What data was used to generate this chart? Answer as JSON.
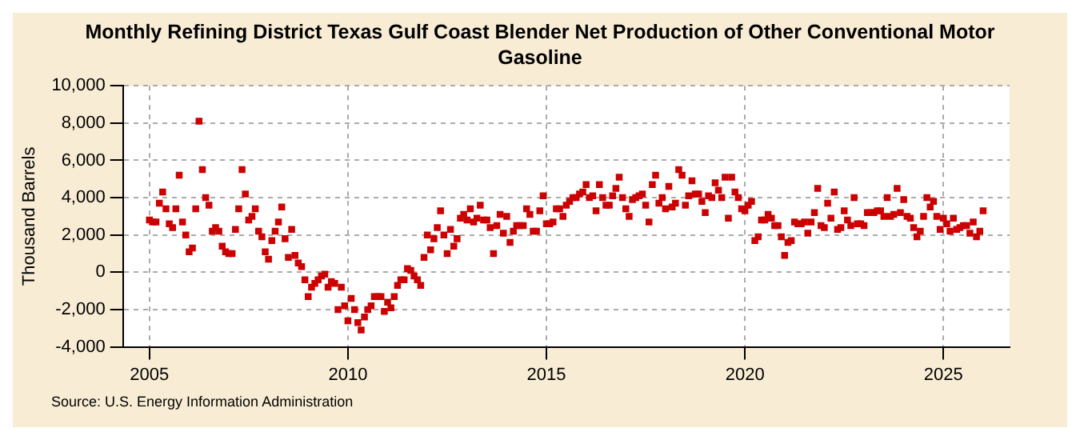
{
  "chart_data": {
    "type": "scatter",
    "title": "Monthly Refining District Texas Gulf Coast Blender Net Production of Other Conventional Motor Gasoline",
    "ylabel": "Thousand Barrels",
    "annotations": [
      "Source: U.S. Energy Information Administration"
    ],
    "xlim": [
      "2004-05",
      "2026-09"
    ],
    "xticks": [
      "2005",
      "2010",
      "2015",
      "2020",
      "2025"
    ],
    "ylim": [
      -4000,
      10000
    ],
    "yticks": [
      {
        "value": -4000,
        "label": "-4,000"
      },
      {
        "value": -2000,
        "label": "-2,000"
      },
      0,
      {
        "value": 2000,
        "label": "2,000"
      },
      {
        "value": 4000,
        "label": "4,000"
      },
      {
        "value": 6000,
        "label": "6,000"
      },
      {
        "value": 8000,
        "label": "8,000"
      },
      {
        "value": 10000,
        "label": "10,000"
      }
    ],
    "grid": true,
    "legend": false,
    "marker": "square",
    "x": [
      "2005-01",
      "2005-02",
      "2005-03",
      "2005-04",
      "2005-05",
      "2005-06",
      "2005-07",
      "2005-08",
      "2005-09",
      "2005-10",
      "2005-11",
      "2005-12",
      "2006-01",
      "2006-02",
      "2006-03",
      "2006-04",
      "2006-05",
      "2006-06",
      "2006-07",
      "2006-08",
      "2006-09",
      "2006-10",
      "2006-11",
      "2006-12",
      "2007-01",
      "2007-02",
      "2007-03",
      "2007-04",
      "2007-05",
      "2007-06",
      "2007-07",
      "2007-08",
      "2007-09",
      "2007-10",
      "2007-11",
      "2007-12",
      "2008-01",
      "2008-02",
      "2008-03",
      "2008-04",
      "2008-05",
      "2008-06",
      "2008-07",
      "2008-08",
      "2008-09",
      "2008-10",
      "2008-11",
      "2008-12",
      "2009-01",
      "2009-02",
      "2009-03",
      "2009-04",
      "2009-05",
      "2009-06",
      "2009-07",
      "2009-08",
      "2009-09",
      "2009-10",
      "2009-11",
      "2009-12",
      "2010-01",
      "2010-02",
      "2010-03",
      "2010-04",
      "2010-05",
      "2010-06",
      "2010-07",
      "2010-08",
      "2010-09",
      "2010-10",
      "2010-11",
      "2010-12",
      "2011-01",
      "2011-02",
      "2011-03",
      "2011-04",
      "2011-05",
      "2011-06",
      "2011-07",
      "2011-08",
      "2011-09",
      "2011-10",
      "2011-11",
      "2011-12",
      "2012-01",
      "2012-02",
      "2012-03",
      "2012-04",
      "2012-05",
      "2012-06",
      "2012-07",
      "2012-08",
      "2012-09",
      "2012-10",
      "2012-11",
      "2012-12",
      "2013-01",
      "2013-02",
      "2013-03",
      "2013-04",
      "2013-05",
      "2013-06",
      "2013-07",
      "2013-08",
      "2013-09",
      "2013-10",
      "2013-11",
      "2013-12",
      "2014-01",
      "2014-02",
      "2014-03",
      "2014-04",
      "2014-05",
      "2014-06",
      "2014-07",
      "2014-08",
      "2014-09",
      "2014-10",
      "2014-11",
      "2014-12",
      "2015-01",
      "2015-02",
      "2015-03",
      "2015-04",
      "2015-05",
      "2015-06",
      "2015-07",
      "2015-08",
      "2015-09",
      "2015-10",
      "2015-11",
      "2015-12",
      "2016-01",
      "2016-02",
      "2016-03",
      "2016-04",
      "2016-05",
      "2016-06",
      "2016-07",
      "2016-08",
      "2016-09",
      "2016-10",
      "2016-11",
      "2016-12",
      "2017-01",
      "2017-02",
      "2017-03",
      "2017-04",
      "2017-05",
      "2017-06",
      "2017-07",
      "2017-08",
      "2017-09",
      "2017-10",
      "2017-11",
      "2017-12",
      "2018-01",
      "2018-02",
      "2018-03",
      "2018-04",
      "2018-05",
      "2018-06",
      "2018-07",
      "2018-08",
      "2018-09",
      "2018-10",
      "2018-11",
      "2018-12",
      "2019-01",
      "2019-02",
      "2019-03",
      "2019-04",
      "2019-05",
      "2019-06",
      "2019-07",
      "2019-08",
      "2019-09",
      "2019-10",
      "2019-11",
      "2019-12",
      "2020-01",
      "2020-02",
      "2020-03",
      "2020-04",
      "2020-05",
      "2020-06",
      "2020-07",
      "2020-08",
      "2020-09",
      "2020-10",
      "2020-11",
      "2020-12",
      "2021-01",
      "2021-02",
      "2021-03",
      "2021-04",
      "2021-05",
      "2021-06",
      "2021-07",
      "2021-08",
      "2021-09",
      "2021-10",
      "2021-11",
      "2021-12",
      "2022-01",
      "2022-02",
      "2022-03",
      "2022-04",
      "2022-05",
      "2022-06",
      "2022-07",
      "2022-08",
      "2022-09",
      "2022-10",
      "2022-11",
      "2022-12",
      "2023-01",
      "2023-02",
      "2023-03",
      "2023-04",
      "2023-05",
      "2023-06",
      "2023-07",
      "2023-08",
      "2023-09",
      "2023-10",
      "2023-11",
      "2023-12",
      "2024-01",
      "2024-02",
      "2024-03",
      "2024-04",
      "2024-05",
      "2024-06",
      "2024-07",
      "2024-08",
      "2024-09",
      "2024-10",
      "2024-11",
      "2024-12",
      "2025-01",
      "2025-02",
      "2025-03",
      "2025-04",
      "2025-05",
      "2025-06",
      "2025-07",
      "2025-08",
      "2025-09",
      "2025-10",
      "2025-11",
      "2025-12",
      "2026-01"
    ],
    "series": [
      {
        "color": "#cc0000",
        "values": [
          2800,
          2700,
          2700,
          3700,
          4300,
          3400,
          2600,
          2400,
          3400,
          5200,
          2700,
          2000,
          1100,
          1300,
          3400,
          8100,
          5500,
          4000,
          3600,
          2200,
          2400,
          2200,
          1400,
          1100,
          1000,
          1000,
          2300,
          3400,
          5500,
          4200,
          2800,
          3000,
          3400,
          2200,
          1900,
          1100,
          700,
          1700,
          2200,
          2700,
          3500,
          1800,
          800,
          2300,
          900,
          500,
          300,
          -400,
          -1300,
          -800,
          -600,
          -400,
          -200,
          -100,
          -800,
          -500,
          -600,
          -2000,
          -800,
          -1800,
          -2600,
          -1400,
          -2000,
          -2700,
          -3100,
          -2400,
          -2000,
          -1800,
          -1300,
          -1300,
          -1300,
          -2100,
          -1600,
          -1900,
          -1300,
          -700,
          -400,
          -400,
          200,
          100,
          -200,
          -400,
          -700,
          800,
          2000,
          1200,
          1800,
          2400,
          3300,
          2000,
          1000,
          2300,
          1400,
          1800,
          2900,
          3100,
          2800,
          3400,
          2700,
          2900,
          3600,
          2800,
          2800,
          2400,
          1000,
          2500,
          3100,
          2100,
          3000,
          1600,
          2200,
          2500,
          2500,
          2500,
          3400,
          3100,
          2200,
          2200,
          3300,
          4100,
          2600,
          2600,
          2700,
          3400,
          3400,
          3000,
          3600,
          3800,
          4000,
          4000,
          4200,
          4300,
          4700,
          4000,
          4100,
          3300,
          4700,
          4000,
          3600,
          3600,
          4100,
          4500,
          5100,
          4000,
          3400,
          3000,
          3900,
          4000,
          4100,
          4200,
          3600,
          2700,
          4700,
          5200,
          3700,
          4000,
          3400,
          4600,
          3500,
          3700,
          5500,
          5200,
          3600,
          4100,
          4900,
          4200,
          4200,
          3800,
          3200,
          4100,
          4000,
          4800,
          4400,
          4000,
          5100,
          2900,
          5100,
          4300,
          4000,
          3400,
          3300,
          3600,
          3800,
          1700,
          1900,
          2800,
          2800,
          3100,
          2900,
          2500,
          2500,
          1900,
          900,
          1600,
          1700,
          2700,
          2600,
          2600,
          2700,
          2100,
          2700,
          3200,
          4500,
          2500,
          2400,
          3700,
          2900,
          4300,
          2300,
          2400,
          3300,
          2800,
          2500,
          4000,
          2600,
          2600,
          2500,
          3200,
          3200,
          3200,
          3300,
          3300,
          3000,
          4000,
          3000,
          3100,
          4500,
          3200,
          3900,
          3000,
          2900,
          2400,
          1900,
          2200,
          3000,
          4000,
          3500,
          3800,
          3000,
          2300,
          2900,
          2600,
          2200,
          2900,
          2300,
          2400,
          2500,
          2500,
          2100,
          2700,
          1900,
          2200,
          3300
        ]
      }
    ]
  }
}
